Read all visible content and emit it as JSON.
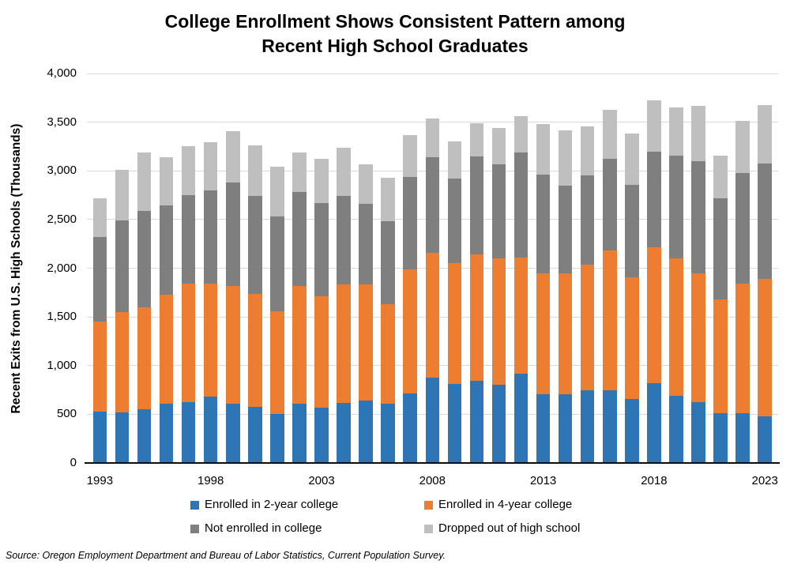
{
  "header": {
    "title_line1": "College Enrollment Shows Consistent Pattern among",
    "title_line2": "Recent High School Graduates"
  },
  "chart_data": {
    "type": "bar",
    "stacked": true,
    "title": "College Enrollment Shows Consistent Pattern among Recent High School Graduates",
    "xlabel": "",
    "ylabel": "Recent Exits from U.S. High Schools (Thousands)",
    "ylim": [
      0,
      4000
    ],
    "ytick_interval": 500,
    "yticks": [
      "0",
      "500",
      "1,000",
      "1,500",
      "2,000",
      "2,500",
      "3,000",
      "3,500",
      "4,000"
    ],
    "grid": true,
    "legend_position": "bottom",
    "categories": [
      "1993",
      "1994",
      "1995",
      "1996",
      "1997",
      "1998",
      "1999",
      "2000",
      "2001",
      "2002",
      "2003",
      "2004",
      "2005",
      "2006",
      "2007",
      "2008",
      "2009",
      "2010",
      "2011",
      "2012",
      "2013",
      "2014",
      "2015",
      "2016",
      "2017",
      "2018",
      "2019",
      "2020",
      "2021",
      "2022",
      "2023"
    ],
    "xtick_labels": [
      "1993",
      "1998",
      "2003",
      "2008",
      "2013",
      "2018",
      "2023"
    ],
    "series": [
      {
        "name": "Enrolled in 2-year college",
        "color": "#2E75B6",
        "values": [
          525,
          520,
          555,
          610,
          625,
          685,
          605,
          580,
          505,
          605,
          565,
          615,
          645,
          610,
          715,
          875,
          810,
          845,
          800,
          920,
          710,
          710,
          745,
          745,
          655,
          820,
          690,
          625,
          510,
          510,
          480
        ]
      },
      {
        "name": "Enrolled in 4-year college",
        "color": "#ED7D31",
        "values": [
          930,
          1030,
          1045,
          1120,
          1220,
          1155,
          1215,
          1160,
          1055,
          1210,
          1145,
          1220,
          1185,
          1025,
          1275,
          1285,
          1245,
          1300,
          1300,
          1190,
          1240,
          1240,
          1295,
          1435,
          1250,
          1395,
          1410,
          1325,
          1170,
          1335,
          1410
        ]
      },
      {
        "name": "Not enrolled in college",
        "color": "#7F7F7F",
        "values": [
          865,
          945,
          985,
          915,
          905,
          960,
          1060,
          1000,
          975,
          970,
          960,
          910,
          830,
          845,
          945,
          980,
          870,
          1000,
          965,
          1075,
          1010,
          900,
          910,
          940,
          950,
          985,
          1060,
          1150,
          1040,
          1135,
          1185
        ]
      },
      {
        "name": "Dropped out of high school",
        "color": "#BFBFBF",
        "values": [
          400,
          515,
          600,
          495,
          505,
          495,
          525,
          520,
          510,
          400,
          455,
          490,
          405,
          450,
          430,
          395,
          380,
          345,
          375,
          375,
          520,
          570,
          510,
          510,
          525,
          525,
          495,
          570,
          440,
          530,
          600
        ]
      }
    ],
    "colors": {
      "gridline": "#D9D9D9",
      "axis_line": "#0d0d0d",
      "text": "#000000",
      "background": "#FFFFFF"
    },
    "source": "Source: Oregon Employment Department and Bureau of Labor Statistics, Current Population Survey."
  }
}
